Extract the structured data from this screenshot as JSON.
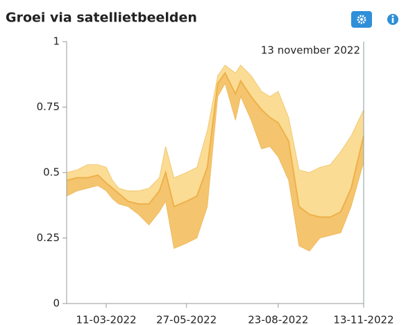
{
  "chart_data": {
    "type": "band-line",
    "title": "Groei via satellietbeelden",
    "x": [
      "01-02-2022",
      "11-02-2022",
      "21-02-2022",
      "03-03-2022",
      "11-03-2022",
      "17-03-2022",
      "23-03-2022",
      "01-04-2022",
      "11-04-2022",
      "21-04-2022",
      "01-05-2022",
      "07-05-2022",
      "15-05-2022",
      "27-05-2022",
      "06-06-2022",
      "16-06-2022",
      "26-06-2022",
      "03-07-2022",
      "13-07-2022",
      "18-07-2022",
      "28-07-2022",
      "07-08-2022",
      "15-08-2022",
      "23-08-2022",
      "02-09-2022",
      "12-09-2022",
      "22-09-2022",
      "02-10-2022",
      "12-10-2022",
      "22-10-2022",
      "01-11-2022",
      "13-11-2022"
    ],
    "series": [
      {
        "color": "#fbdc94",
        "values": [
          0.5,
          0.51,
          0.53,
          0.53,
          0.52,
          0.47,
          0.44,
          0.43,
          0.43,
          0.44,
          0.48,
          0.6,
          0.48,
          0.5,
          0.52,
          0.66,
          0.87,
          0.91,
          0.88,
          0.91,
          0.87,
          0.81,
          0.79,
          0.81,
          0.71,
          0.51,
          0.5,
          0.52,
          0.53,
          0.58,
          0.64,
          0.74
        ]
      },
      {
        "color": "#eeb04a",
        "values": [
          0.47,
          0.48,
          0.48,
          0.49,
          0.46,
          0.44,
          0.42,
          0.39,
          0.38,
          0.38,
          0.43,
          0.5,
          0.37,
          0.39,
          0.41,
          0.52,
          0.84,
          0.88,
          0.8,
          0.85,
          0.79,
          0.74,
          0.71,
          0.69,
          0.62,
          0.37,
          0.34,
          0.33,
          0.33,
          0.35,
          0.44,
          0.64
        ]
      },
      {
        "color": "#f4c56e",
        "values": [
          0.41,
          0.43,
          0.44,
          0.45,
          0.43,
          0.4,
          0.38,
          0.37,
          0.34,
          0.3,
          0.35,
          0.39,
          0.21,
          0.23,
          0.25,
          0.37,
          0.79,
          0.84,
          0.7,
          0.79,
          0.7,
          0.59,
          0.6,
          0.56,
          0.47,
          0.22,
          0.2,
          0.25,
          0.26,
          0.27,
          0.37,
          0.54
        ]
      }
    ],
    "xlim": [
      "01-02-2022",
      "13-11-2022"
    ],
    "xticks": [
      "11-03-2022",
      "27-05-2022",
      "23-08-2022",
      "13-11-2022"
    ],
    "ylim": [
      0,
      1
    ],
    "yticks": [
      0,
      0.25,
      0.5,
      0.75,
      1
    ],
    "annotation": {
      "x": "13-11-2022",
      "text": "13 november 2022"
    }
  }
}
